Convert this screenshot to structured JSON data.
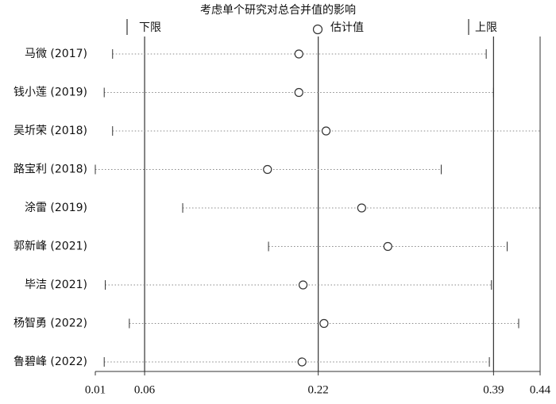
{
  "chart_data": {
    "type": "sensitivity",
    "title": "考虑单个研究对总合并值的影响",
    "legend": {
      "lower": "下限",
      "estimate": "估计值",
      "upper": "上限"
    },
    "categories": [
      "马微 (2017)",
      "钱小莲 (2019)",
      "吴圻荣 (2018)",
      "路宝利 (2018)",
      "涂雷 (2019)",
      "郭新峰 (2021)",
      "毕洁 (2021)",
      "杨智勇 (2022)",
      "鲁碧峰 (2022)"
    ],
    "estimate": [
      0.206,
      0.206,
      0.232,
      0.176,
      0.266,
      0.291,
      0.21,
      0.23,
      0.209
    ],
    "lower": [
      0.028,
      0.02,
      0.028,
      0.0115,
      0.095,
      0.177,
      0.021,
      0.044,
      0.02
    ],
    "upper": [
      0.385,
      0.392,
      0.4365,
      0.342,
      0.4365,
      0.405,
      0.39,
      0.416,
      0.388
    ],
    "xlim": [
      0.0115,
      0.4365
    ],
    "xticks": [
      {
        "value": 0.0115,
        "label": "0.01"
      },
      {
        "value": 0.0586,
        "label": "0.06"
      },
      {
        "value": 0.2245,
        "label": "0.22"
      },
      {
        "value": 0.392,
        "label": "0.39"
      },
      {
        "value": 0.4365,
        "label": "0.44"
      }
    ],
    "reference_lines": [
      1,
      2,
      3
    ],
    "color": "#333333"
  }
}
